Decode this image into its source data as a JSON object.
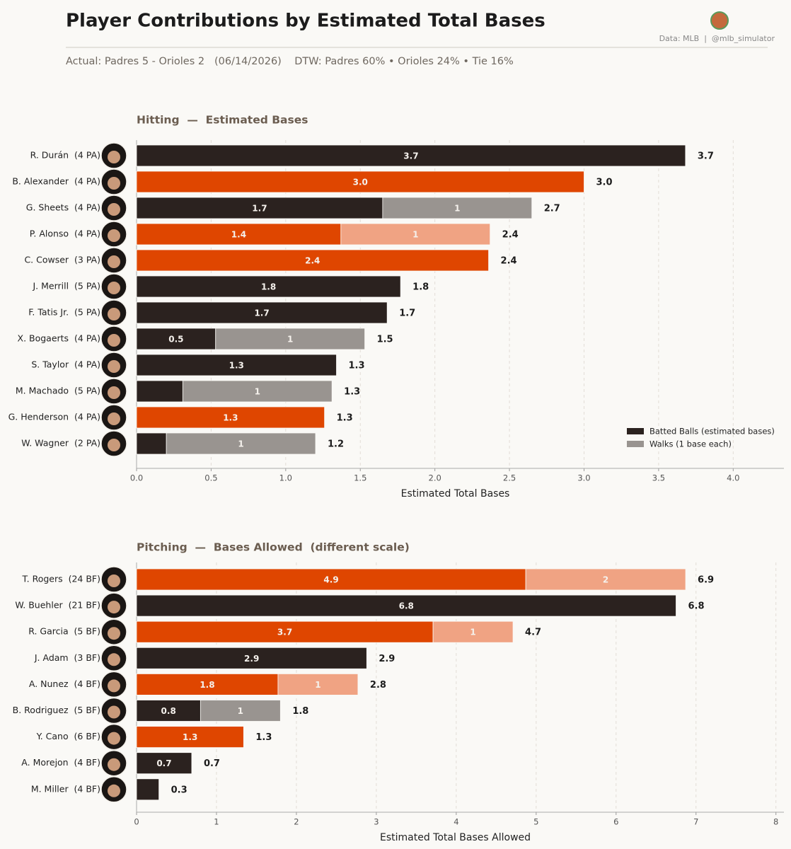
{
  "title": "Player Contributions by Estimated Total Bases",
  "source": "Data: MLB  |  @mlb_simulator",
  "subtitle": "Actual: Padres 5 - Orioles 2   (06/14/2026)    DTW: Padres 60% • Orioles 24% • Tie 16%",
  "chart_data": [
    {
      "type": "bar",
      "orientation": "horizontal",
      "stacked": true,
      "title": "Hitting  —  Estimated Bases",
      "xlabel": "Estimated Total Bases",
      "categories": [
        "R. Durán  (4 PA)",
        "B. Alexander  (4 PA)",
        "G. Sheets  (4 PA)",
        "P. Alonso  (4 PA)",
        "C. Cowser  (3 PA)",
        "J. Merrill  (5 PA)",
        "F. Tatis Jr.  (5 PA)",
        "X. Bogaerts  (4 PA)",
        "S. Taylor  (4 PA)",
        "M. Machado  (5 PA)",
        "G. Henderson  (4 PA)",
        "W. Wagner  (2 PA)"
      ],
      "series": [
        {
          "name": "Batted Balls (estimated bases)",
          "color": "#2b221f",
          "colors": [
            "#2b221f",
            "#df4600",
            "#2b221f",
            "#df4600",
            "#df4600",
            "#2b221f",
            "#2b221f",
            "#2b221f",
            "#2b221f",
            "#2b221f",
            "#df4600",
            "#2b221f"
          ],
          "values": [
            3.68,
            3.0,
            1.65,
            1.37,
            2.36,
            1.77,
            1.68,
            0.53,
            1.34,
            0.31,
            1.26,
            0.2
          ],
          "value_labels": [
            "3.7",
            "3.0",
            "1.7",
            "1.4",
            "2.4",
            "1.8",
            "1.7",
            "0.5",
            "1.3",
            null,
            "1.3",
            null
          ]
        },
        {
          "name": "Walks (1 base each)",
          "color": "#999490",
          "colors": [
            "#999490",
            "#999490",
            "#999490",
            "#f0a383",
            "#f0a383",
            "#999490",
            "#999490",
            "#999490",
            "#999490",
            "#999490",
            "#f0a383",
            "#999490"
          ],
          "values": [
            null,
            null,
            1,
            1,
            null,
            null,
            null,
            1,
            null,
            1,
            null,
            1
          ]
        }
      ],
      "totals": [
        3.68,
        3.0,
        2.65,
        2.37,
        2.36,
        1.77,
        1.68,
        1.53,
        1.34,
        1.31,
        1.26,
        1.2
      ],
      "total_labels": [
        "3.7",
        "3.0",
        "2.7",
        "2.4",
        "2.4",
        "1.8",
        "1.7",
        "1.5",
        "1.3",
        "1.3",
        "1.3",
        "1.2"
      ],
      "xlim": [
        0,
        4.34
      ],
      "xticks": [
        {
          "value": 0,
          "label": "0.0"
        },
        0.5,
        {
          "value": 1,
          "label": "1.0"
        },
        1.5,
        {
          "value": 2,
          "label": "2.0"
        },
        2.5,
        {
          "value": 3,
          "label": "3.0"
        },
        3.5,
        {
          "value": 4,
          "label": "4.0"
        }
      ],
      "grid": true,
      "legend": "lower right"
    },
    {
      "type": "bar",
      "orientation": "horizontal",
      "stacked": true,
      "title": "Pitching  —  Bases Allowed  (different scale)",
      "xlabel": "Estimated Total Bases Allowed",
      "categories": [
        "T. Rogers  (24 BF)",
        "W. Buehler  (21 BF)",
        "R. Garcia  (5 BF)",
        "J. Adam  (3 BF)",
        "A. Nunez  (4 BF)",
        "B. Rodriguez  (5 BF)",
        "Y. Cano  (6 BF)",
        "A. Morejon  (4 BF)",
        "M. Miller  (4 BF)"
      ],
      "series": [
        {
          "color": "#2b221f",
          "colors": [
            "#df4600",
            "#2b221f",
            "#df4600",
            "#2b221f",
            "#df4600",
            "#2b221f",
            "#df4600",
            "#2b221f",
            "#2b221f"
          ],
          "values": [
            4.87,
            6.75,
            3.71,
            2.88,
            1.77,
            0.8,
            1.34,
            0.69,
            0.28
          ],
          "value_labels": [
            "4.9",
            "6.8",
            "3.7",
            "2.9",
            "1.8",
            "0.8",
            "1.3",
            "0.7",
            null
          ]
        },
        {
          "color": "#999490",
          "colors": [
            "#f0a383",
            "#999490",
            "#f0a383",
            "#999490",
            "#f0a383",
            "#999490",
            "#f0a383",
            "#999490",
            "#999490"
          ],
          "values": [
            2,
            null,
            1,
            null,
            1,
            1,
            null,
            null,
            null
          ]
        }
      ],
      "totals": [
        6.87,
        6.75,
        4.71,
        2.88,
        2.77,
        1.8,
        1.34,
        0.69,
        0.28
      ],
      "total_labels": [
        "6.9",
        "6.8",
        "4.7",
        "2.9",
        "2.8",
        "1.8",
        "1.3",
        "0.7",
        "0.3"
      ],
      "xlim": [
        0,
        8.1
      ],
      "xticks": [
        0,
        1,
        2,
        3,
        4,
        5,
        6,
        7,
        8
      ],
      "grid": true
    }
  ]
}
